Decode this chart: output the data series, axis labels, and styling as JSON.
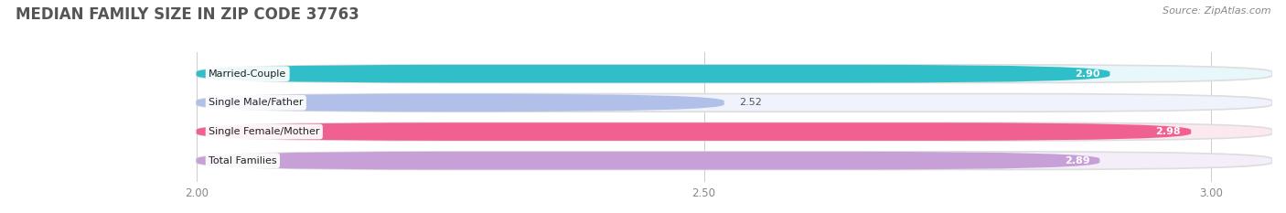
{
  "title": "MEDIAN FAMILY SIZE IN ZIP CODE 37763",
  "source": "Source: ZipAtlas.com",
  "categories": [
    "Married-Couple",
    "Single Male/Father",
    "Single Female/Mother",
    "Total Families"
  ],
  "values": [
    2.9,
    2.52,
    2.98,
    2.89
  ],
  "bar_colors": [
    "#30bfc8",
    "#b0c0e8",
    "#f06090",
    "#c8a0d8"
  ],
  "bar_bg_colors": [
    "#e8f8fa",
    "#f0f2fc",
    "#fce8f0",
    "#f4eef8"
  ],
  "xlim_min": 1.82,
  "xlim_max": 3.06,
  "xstart": 2.0,
  "xticks": [
    2.0,
    2.5,
    3.0
  ],
  "xtick_labels": [
    "2.00",
    "2.50",
    "3.00"
  ],
  "title_fontsize": 12,
  "source_fontsize": 8,
  "label_fontsize": 8,
  "value_fontsize": 8,
  "bar_height": 0.62,
  "background_color": "#ffffff"
}
